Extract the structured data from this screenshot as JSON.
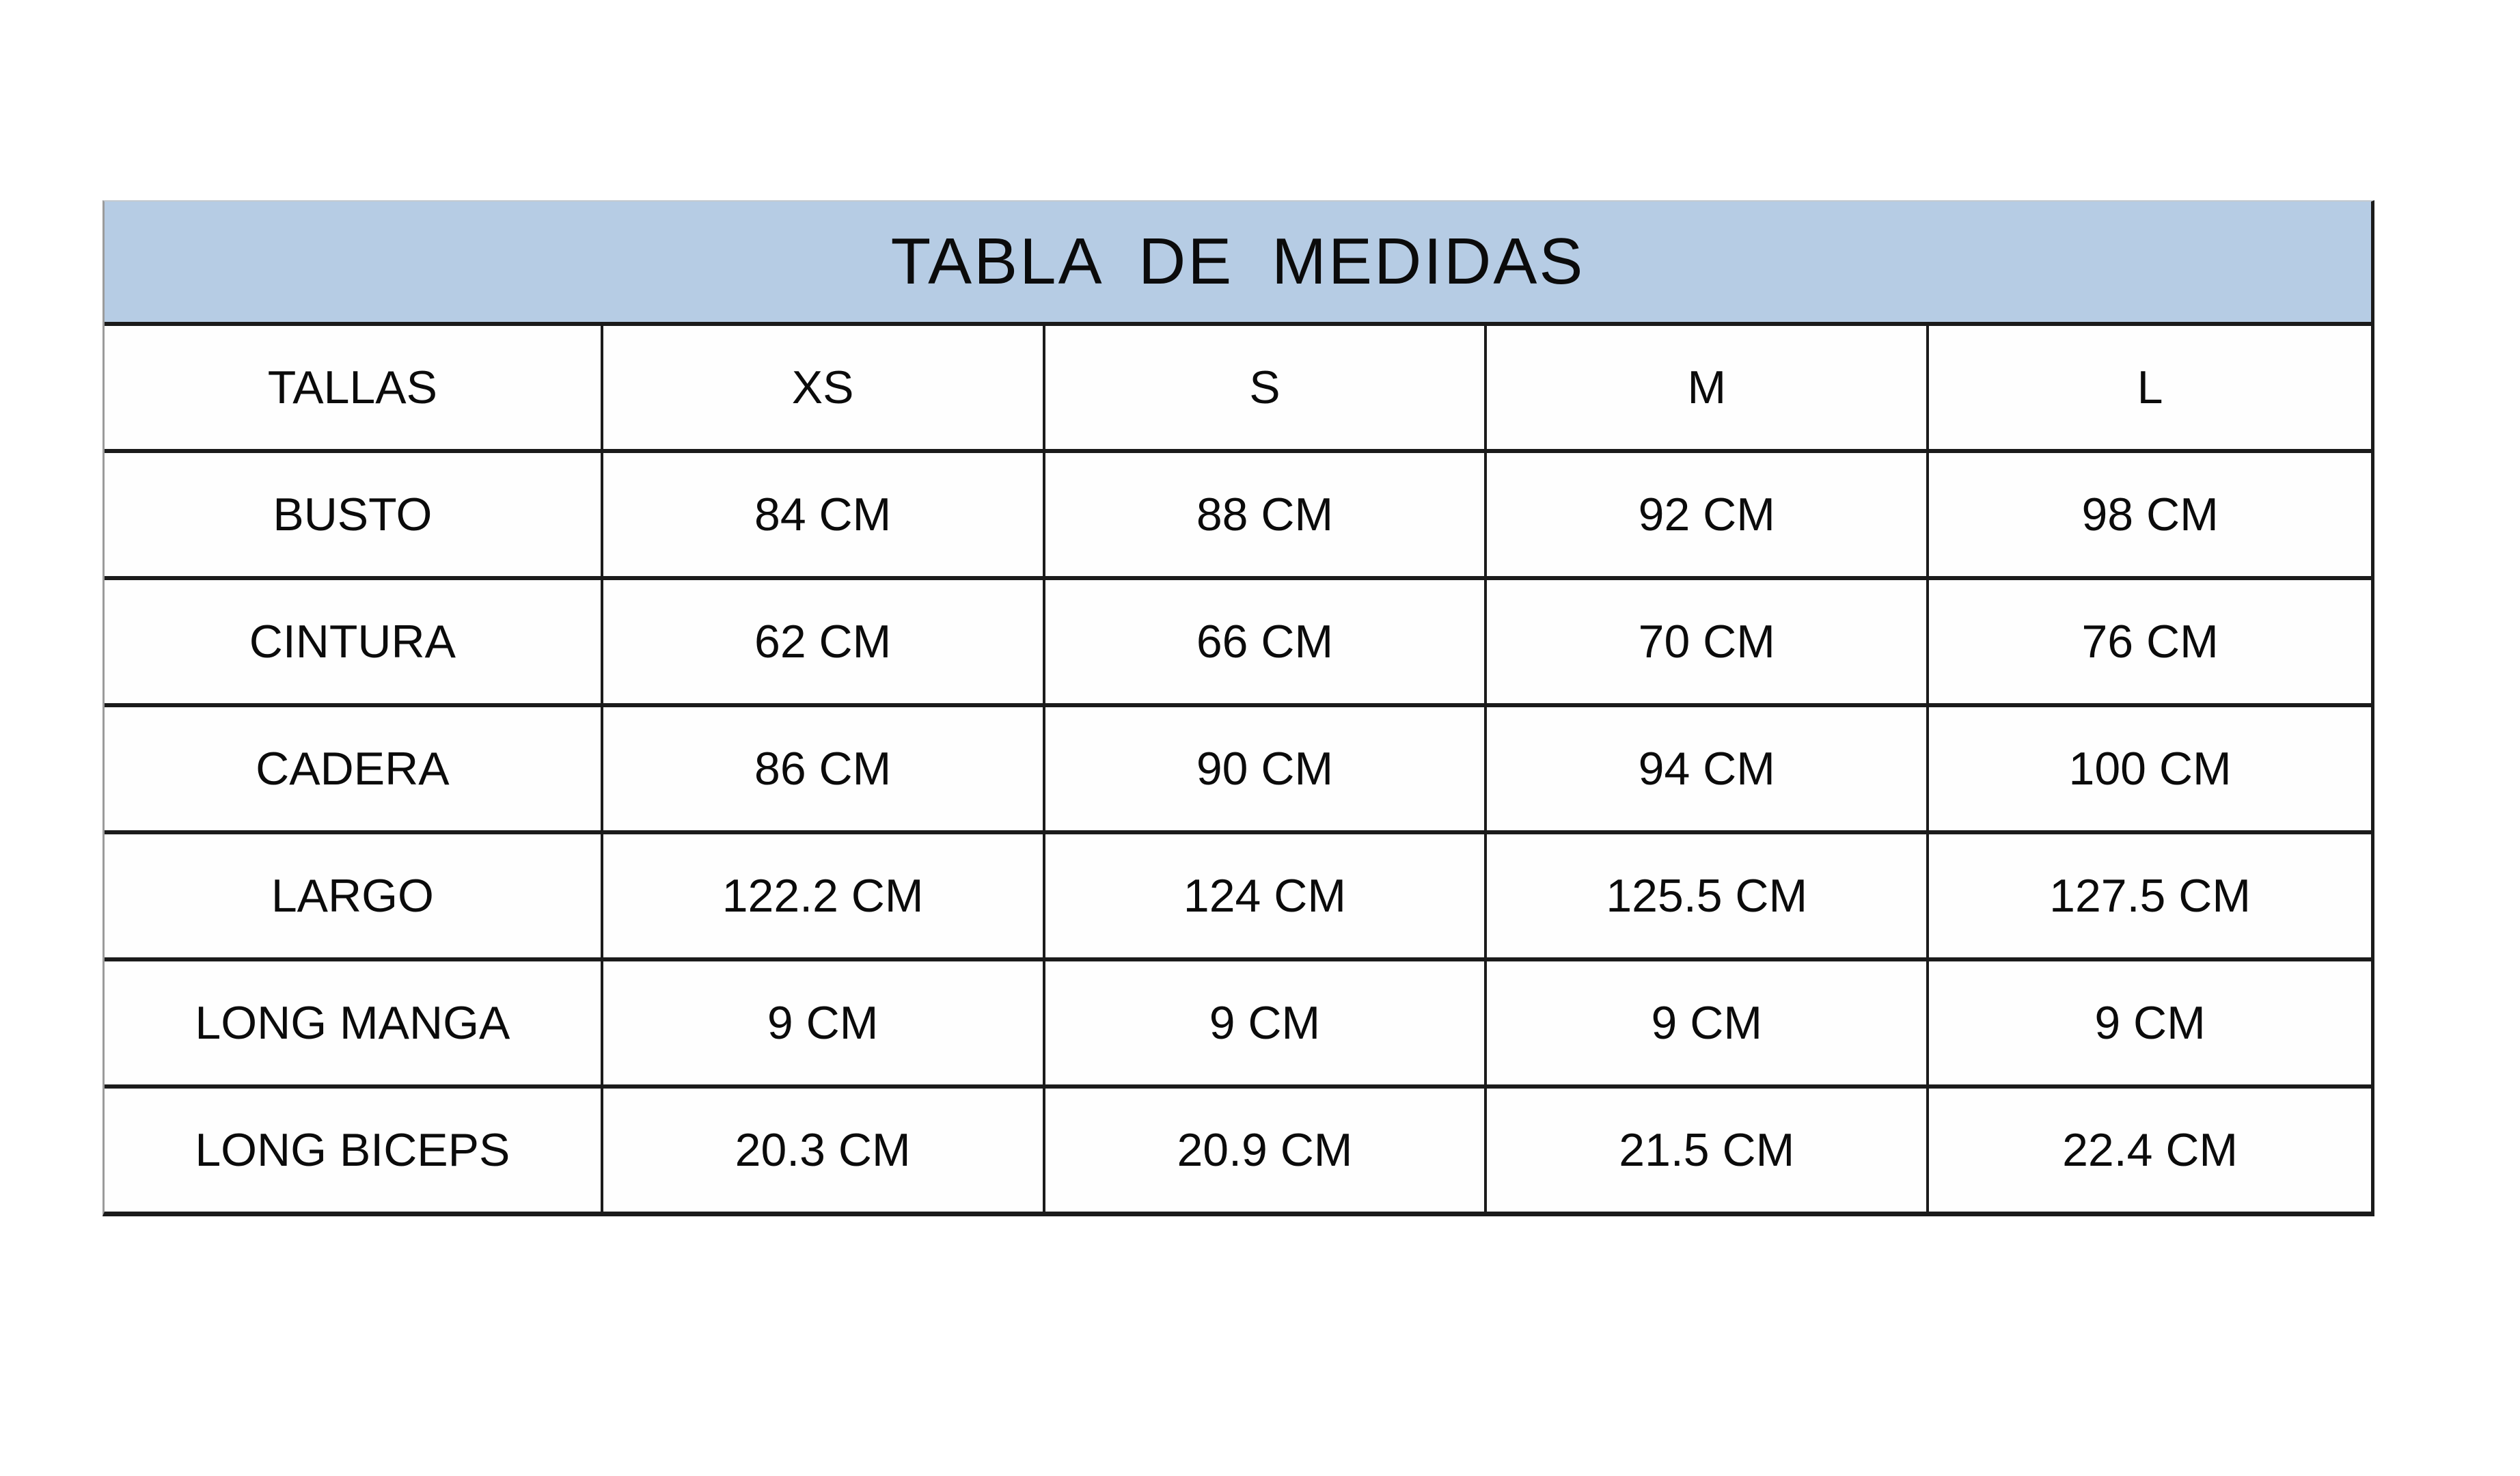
{
  "chart_data": {
    "type": "table",
    "title": "TABLA DE MEDIDAS",
    "columns": [
      "TALLAS",
      "XS",
      "S",
      "M",
      "L"
    ],
    "rows": [
      {
        "label": "BUSTO",
        "values": [
          "84 CM",
          "88 CM",
          "92 CM",
          "98 CM"
        ]
      },
      {
        "label": "CINTURA",
        "values": [
          "62 CM",
          "66 CM",
          "70 CM",
          "76 CM"
        ]
      },
      {
        "label": "CADERA",
        "values": [
          "86 CM",
          "90 CM",
          "94 CM",
          "100 CM"
        ]
      },
      {
        "label": "LARGO",
        "values": [
          "122.2 CM",
          "124 CM",
          "125.5 CM",
          "127.5 CM"
        ]
      },
      {
        "label": "LONG MANGA",
        "values": [
          "9 CM",
          "9 CM",
          "9 CM",
          "9 CM"
        ]
      },
      {
        "label": "LONG BICEPS",
        "values": [
          "20.3 CM",
          "20.9 CM",
          "21.5 CM",
          "22.4 CM"
        ]
      }
    ],
    "layout": {
      "title_position": "top-banner",
      "grid": "on",
      "units": "CM"
    }
  },
  "style": {
    "title_bg": "#b6cce4",
    "border_color": "#1b1b1b",
    "text_color": "#0b0b0b",
    "page_bg": "#ffffff"
  }
}
